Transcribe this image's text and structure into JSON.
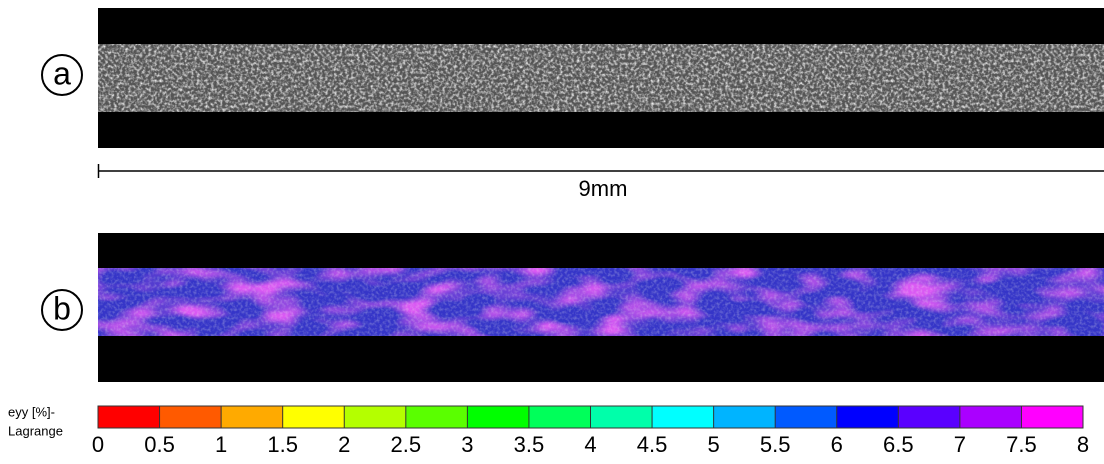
{
  "panels": [
    {
      "label": "a"
    },
    {
      "label": "b"
    }
  ],
  "scale_bar": {
    "label": "9mm"
  },
  "colorbar": {
    "label_lines": [
      "eyy [%]-",
      "Lagrange"
    ],
    "lim": [
      0,
      8
    ],
    "ticks": [
      0,
      0.5,
      1,
      1.5,
      2,
      2.5,
      3,
      3.5,
      4,
      4.5,
      5,
      5.5,
      6,
      6.5,
      7,
      7.5,
      8
    ],
    "colors": [
      "#ff0000",
      "#ff5a00",
      "#ffaa00",
      "#ffff00",
      "#b4ff00",
      "#5aff00",
      "#00ff00",
      "#00ff5a",
      "#00ffaa",
      "#00ffff",
      "#00b4ff",
      "#005aff",
      "#0000ff",
      "#5a00ff",
      "#aa00ff",
      "#ff00ff"
    ]
  }
}
